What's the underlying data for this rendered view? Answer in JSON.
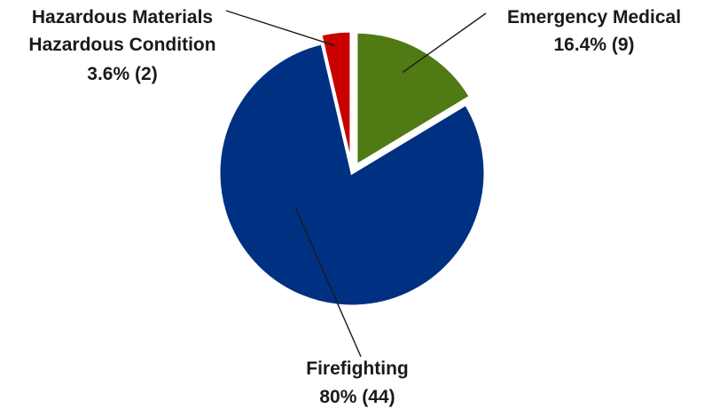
{
  "chart_data": {
    "type": "pie",
    "title": "",
    "slices": [
      {
        "name": "Emergency Medical",
        "percent_label": "16.4%",
        "count_label": "(9)",
        "value": 9,
        "color": "#4f7a14",
        "exploded": true
      },
      {
        "name": "Firefighting",
        "percent_label": "80%",
        "count_label": "(44)",
        "value": 44,
        "color": "#003082",
        "exploded": false
      },
      {
        "name": "Hazardous Materials Hazardous Condition",
        "name_lines": [
          "Hazardous Materials",
          "Hazardous Condition"
        ],
        "percent_label": "3.6%",
        "count_label": "(2)",
        "value": 2,
        "color": "#c80000",
        "exploded": true
      }
    ]
  }
}
